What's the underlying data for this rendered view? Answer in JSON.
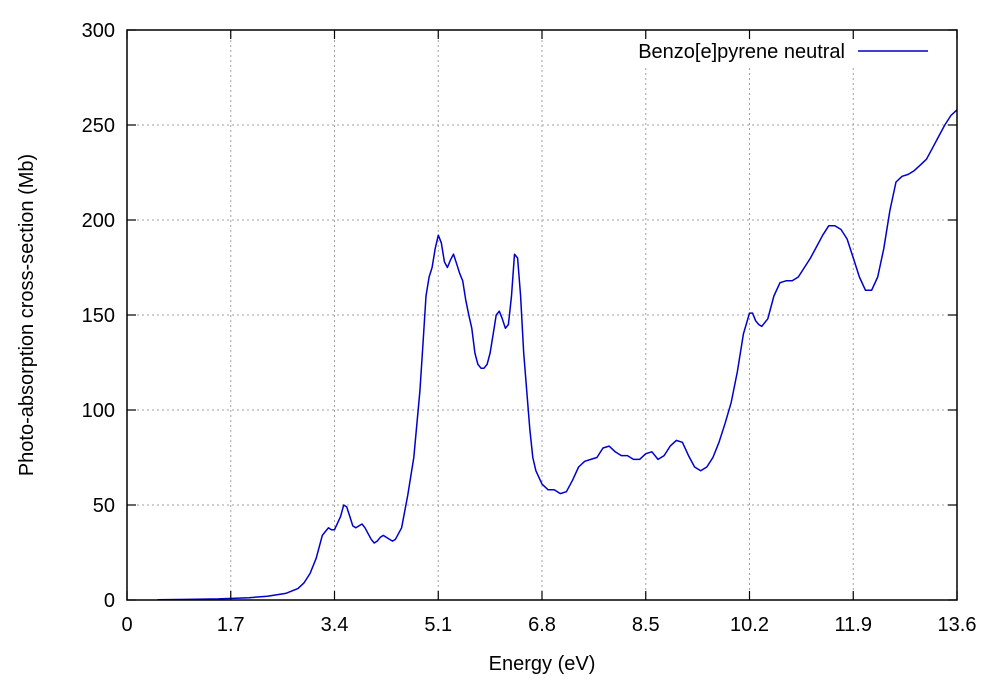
{
  "chart_data": {
    "type": "line",
    "title": "",
    "xlabel": "Energy (eV)",
    "ylabel": "Photo-absorption cross-section (Mb)",
    "xlim": [
      0,
      13.6
    ],
    "ylim": [
      0,
      300
    ],
    "xticks": [
      0,
      1.7,
      3.4,
      5.1,
      6.8,
      8.5,
      10.2,
      11.9,
      13.6
    ],
    "xtick_labels": [
      "0",
      "1.7",
      "3.4",
      "5.1",
      "6.8",
      "8.5",
      "10.2",
      "11.9",
      "13.6"
    ],
    "yticks": [
      0,
      50,
      100,
      150,
      200,
      250,
      300
    ],
    "ytick_labels": [
      "0",
      "50",
      "100",
      "150",
      "200",
      "250",
      "300"
    ],
    "grid": true,
    "legend_position": "top-right",
    "series": [
      {
        "name": "Benzo[e]pyrene neutral",
        "color": "#0000cc",
        "x": [
          0.5,
          1.0,
          1.5,
          2.0,
          2.3,
          2.6,
          2.8,
          2.9,
          3.0,
          3.1,
          3.2,
          3.3,
          3.35,
          3.4,
          3.5,
          3.55,
          3.6,
          3.65,
          3.7,
          3.75,
          3.8,
          3.85,
          3.9,
          4.0,
          4.05,
          4.1,
          4.15,
          4.2,
          4.3,
          4.35,
          4.4,
          4.5,
          4.6,
          4.7,
          4.8,
          4.85,
          4.9,
          4.95,
          5.0,
          5.05,
          5.1,
          5.15,
          5.2,
          5.25,
          5.3,
          5.35,
          5.4,
          5.45,
          5.5,
          5.55,
          5.6,
          5.65,
          5.7,
          5.75,
          5.8,
          5.85,
          5.9,
          5.95,
          6.0,
          6.05,
          6.1,
          6.15,
          6.2,
          6.25,
          6.3,
          6.35,
          6.4,
          6.45,
          6.5,
          6.6,
          6.65,
          6.7,
          6.8,
          6.9,
          7.0,
          7.1,
          7.2,
          7.3,
          7.4,
          7.5,
          7.6,
          7.7,
          7.8,
          7.9,
          8.0,
          8.1,
          8.2,
          8.3,
          8.4,
          8.5,
          8.6,
          8.7,
          8.8,
          8.9,
          9.0,
          9.1,
          9.2,
          9.3,
          9.4,
          9.5,
          9.6,
          9.7,
          9.8,
          9.9,
          10.0,
          10.1,
          10.2,
          10.25,
          10.3,
          10.35,
          10.4,
          10.5,
          10.6,
          10.7,
          10.8,
          10.9,
          11.0,
          11.1,
          11.2,
          11.3,
          11.4,
          11.5,
          11.6,
          11.7,
          11.8,
          11.9,
          12.0,
          12.1,
          12.2,
          12.3,
          12.4,
          12.5,
          12.6,
          12.7,
          12.8,
          12.9,
          13.0,
          13.1,
          13.2,
          13.3,
          13.4,
          13.5,
          13.6
        ],
        "y": [
          0.1,
          0.3,
          0.6,
          1.2,
          2.0,
          3.5,
          6.0,
          9.0,
          14.0,
          22.0,
          34.0,
          38.0,
          37.0,
          37.0,
          44.0,
          50.0,
          49.0,
          44.0,
          39.0,
          38.0,
          39.0,
          40.0,
          38.0,
          32.0,
          30.0,
          31.0,
          33.0,
          34.0,
          32.0,
          31.0,
          32.0,
          38.0,
          55.0,
          75.0,
          110.0,
          135.0,
          160.0,
          170.0,
          175.0,
          185.0,
          192.0,
          188.0,
          178.0,
          175.0,
          179.0,
          182.0,
          177.0,
          172.0,
          168.0,
          158.0,
          150.0,
          143.0,
          130.0,
          124.0,
          122.0,
          122.0,
          124.0,
          130.0,
          140.0,
          150.0,
          152.0,
          148.0,
          143.0,
          145.0,
          160.0,
          182.0,
          180.0,
          160.0,
          130.0,
          90.0,
          75.0,
          68.0,
          61.0,
          58.0,
          58.0,
          56.0,
          57.0,
          63.0,
          70.0,
          73.0,
          74.0,
          75.0,
          80.0,
          81.0,
          78.0,
          76.0,
          76.0,
          74.0,
          74.0,
          77.0,
          78.0,
          74.0,
          76.0,
          81.0,
          84.0,
          83.0,
          76.0,
          70.0,
          68.0,
          70.0,
          75.0,
          83.0,
          93.0,
          104.0,
          120.0,
          140.0,
          151.0,
          151.0,
          147.0,
          145.0,
          144.0,
          148.0,
          160.0,
          167.0,
          168.0,
          168.0,
          170.0,
          175.0,
          180.0,
          186.0,
          192.0,
          197.0,
          197.0,
          195.0,
          190.0,
          180.0,
          170.0,
          163.0,
          163.0,
          170.0,
          185.0,
          205.0,
          220.0,
          223.0,
          224.0,
          226.0,
          229.0,
          232.0,
          238.0,
          244.0,
          250.0,
          255.0,
          258.0
        ]
      }
    ]
  }
}
